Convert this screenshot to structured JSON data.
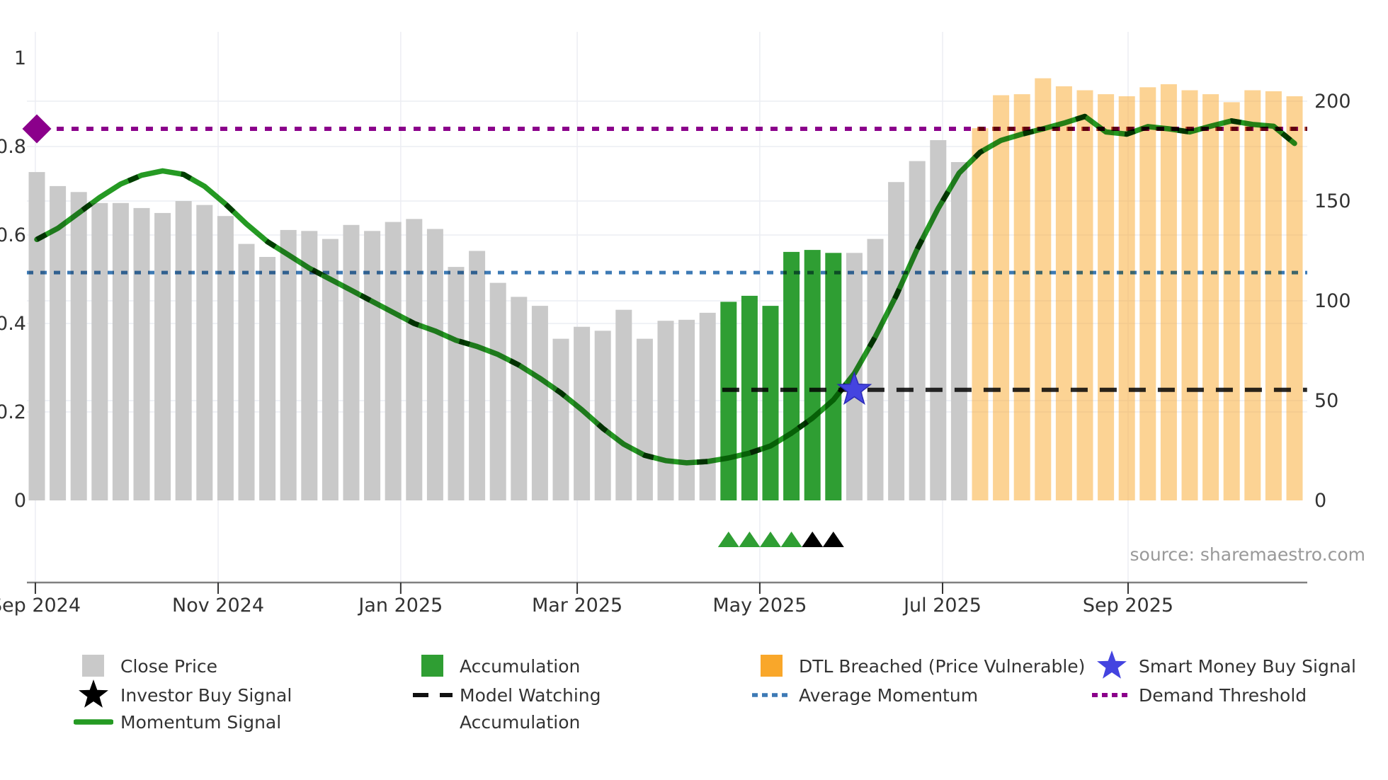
{
  "source_note": "source: sharemaestro.com",
  "legend": {
    "close_price": "Close Price",
    "investor_buy_signal": "Investor Buy Signal",
    "momentum_signal": "Momentum Signal",
    "accumulation_bar": "Accumulation",
    "model_watching": "Model Watching",
    "accumulation_marker": "Accumulation",
    "dtl_breached": "DTL Breached (Price Vulnerable)",
    "average_momentum": "Average Momentum",
    "smart_money_buy_signal": "Smart Money Buy Signal",
    "demand_threshold": "Demand Threshold"
  },
  "colors": {
    "gray_bar": "#c9c9c9",
    "green_bar": "#2f9e33",
    "orange": "#f9a72a",
    "momentum": "#259a23",
    "momentum_dash": "#0b660b",
    "blue_dotted": "#3d7ab5",
    "purple_dotted": "#8b008b",
    "dtl_red": "#b0482c",
    "model_black": "#111111",
    "star_blue": "#4444e0",
    "star_black": "#000000",
    "axis_line": "#808080",
    "tick_text": "#333333",
    "grid": "#ecedf3",
    "source_text": "#999999"
  },
  "chart_data": {
    "type": "bar+line",
    "title": "",
    "x_ticks": [
      {
        "label": "Sep 2024",
        "pos": -0.07
      },
      {
        "label": "Nov 2024",
        "pos": 8.65
      },
      {
        "label": "Jan 2025",
        "pos": 17.36
      },
      {
        "label": "Mar 2025",
        "pos": 25.78
      },
      {
        "label": "May 2025",
        "pos": 34.49
      },
      {
        "label": "Jul 2025",
        "pos": 43.21
      },
      {
        "label": "Sep 2025",
        "pos": 52.06
      }
    ],
    "left_axis": {
      "ticks": [
        {
          "label": "0",
          "v": 0
        },
        {
          "label": "0.2",
          "v": 0.2
        },
        {
          "label": "0.4",
          "v": 0.4
        },
        {
          "label": "0.6",
          "v": 0.6
        },
        {
          "label": "0.8",
          "v": 0.8
        },
        {
          "label": "1",
          "v": 1
        }
      ],
      "gridline_values": [
        0.2,
        0.4,
        0.6,
        0.8
      ],
      "range_shown": [
        0,
        1
      ]
    },
    "right_axis": {
      "ticks": [
        {
          "label": "0",
          "p": 0
        },
        {
          "label": "50",
          "p": 50
        },
        {
          "label": "100",
          "p": 100
        },
        {
          "label": "150",
          "p": 150
        },
        {
          "label": "200",
          "p": 200
        }
      ],
      "gridline_values": [
        50,
        100,
        150,
        200
      ],
      "range_shown": [
        0,
        200
      ]
    },
    "bars": {
      "frequency": "weekly",
      "close_prices": [
        164.5,
        157.5,
        154.5,
        149,
        149,
        146.5,
        144,
        150,
        148,
        142.5,
        128.5,
        122,
        135.5,
        135,
        131,
        138,
        135,
        139.5,
        141,
        136,
        117,
        125,
        109,
        102,
        97.5,
        81,
        87,
        85,
        95.5,
        81,
        90,
        90.5,
        94,
        99.5,
        102.5,
        97.5,
        124.5,
        125.5,
        124,
        124,
        131,
        159.5,
        170,
        180.5,
        169.5,
        186.5,
        203,
        203.5,
        211.5,
        207.5,
        205.5,
        203.5,
        202.5,
        207,
        208.5,
        205.5,
        203.5,
        199.5,
        205.5,
        205,
        202.5
      ],
      "accumulation_range": [
        33,
        38
      ],
      "dtl_breached_range": [
        45,
        60
      ]
    },
    "momentum": [
      0.59,
      0.615,
      0.65,
      0.685,
      0.715,
      0.735,
      0.745,
      0.737,
      0.71,
      0.67,
      0.625,
      0.585,
      0.555,
      0.525,
      0.5,
      0.475,
      0.45,
      0.425,
      0.4,
      0.383,
      0.362,
      0.348,
      0.33,
      0.306,
      0.276,
      0.243,
      0.205,
      0.163,
      0.127,
      0.102,
      0.09,
      0.085,
      0.088,
      0.096,
      0.107,
      0.123,
      0.152,
      0.186,
      0.227,
      0.287,
      0.37,
      0.463,
      0.568,
      0.66,
      0.74,
      0.787,
      0.814,
      0.828,
      0.84,
      0.853,
      0.868,
      0.833,
      0.828,
      0.845,
      0.84,
      0.833,
      0.846,
      0.858,
      0.85,
      0.846,
      0.807
    ],
    "levels": {
      "demand_threshold": 0.84,
      "average_momentum": 0.515,
      "model_watching": 0.25
    },
    "model_watching_span_bars": [
      32.7,
      60.6
    ],
    "dtl_breached_line_span_bars": [
      44.5,
      60.6
    ],
    "markers": {
      "demand_diamond": {
        "bar": 0,
        "value": 0.84
      },
      "smart_money_star": {
        "bar": 39,
        "value": 0.25
      },
      "green_triangle_bars": [
        33,
        34,
        35,
        36
      ],
      "black_triangle_bars": [
        37,
        38
      ]
    },
    "legend_position": "bottom",
    "grid": true
  }
}
